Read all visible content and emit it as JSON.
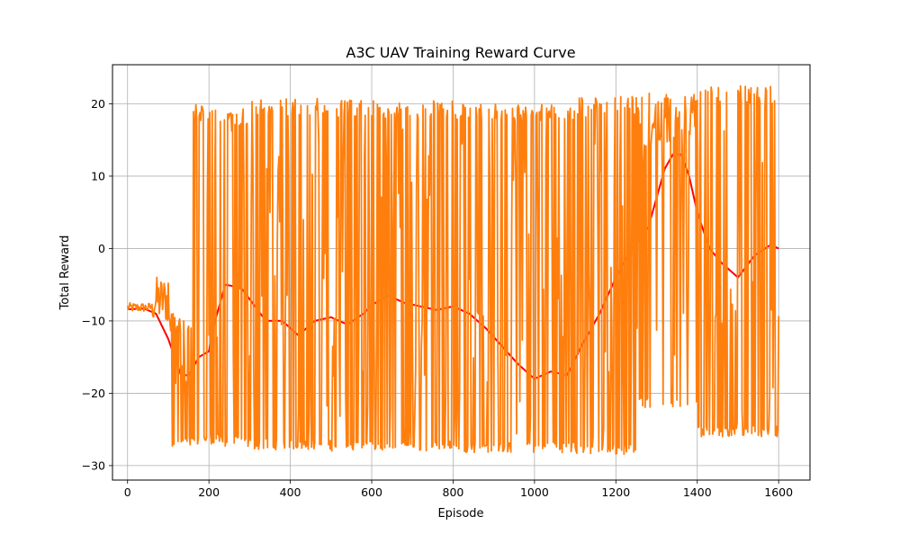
{
  "chart_data": {
    "type": "line",
    "title": "A3C UAV Training Reward Curve",
    "xlabel": "Episode",
    "ylabel": "Total Reward",
    "xlim": [
      -37,
      1677
    ],
    "ylim": [
      -32,
      25.4
    ],
    "xticks": [
      0,
      200,
      400,
      600,
      800,
      1000,
      1200,
      1400,
      1600
    ],
    "yticks": [
      -30,
      -20,
      -10,
      0,
      10,
      20
    ],
    "grid": true,
    "legend": "none",
    "series": [
      {
        "color": "#ff0000",
        "role": "smoothed",
        "points": [
          [
            0,
            -8.4
          ],
          [
            40,
            -8.3
          ],
          [
            70,
            -9
          ],
          [
            100,
            -12.5
          ],
          [
            130,
            -17.3
          ],
          [
            150,
            -17.6
          ],
          [
            175,
            -15
          ],
          [
            200,
            -14.2
          ],
          [
            215,
            -10
          ],
          [
            240,
            -5
          ],
          [
            260,
            -5.2
          ],
          [
            280,
            -5.5
          ],
          [
            300,
            -7
          ],
          [
            340,
            -10
          ],
          [
            380,
            -10
          ],
          [
            420,
            -12
          ],
          [
            460,
            -10
          ],
          [
            500,
            -9.5
          ],
          [
            540,
            -10.5
          ],
          [
            580,
            -9
          ],
          [
            600,
            -7.8
          ],
          [
            640,
            -6.5
          ],
          [
            680,
            -7.5
          ],
          [
            720,
            -8
          ],
          [
            760,
            -8.5
          ],
          [
            800,
            -8
          ],
          [
            840,
            -9
          ],
          [
            880,
            -11
          ],
          [
            920,
            -13.5
          ],
          [
            960,
            -16
          ],
          [
            1000,
            -18
          ],
          [
            1040,
            -17
          ],
          [
            1080,
            -17.5
          ],
          [
            1120,
            -13
          ],
          [
            1160,
            -9
          ],
          [
            1200,
            -4
          ],
          [
            1240,
            0
          ],
          [
            1280,
            3
          ],
          [
            1300,
            7
          ],
          [
            1320,
            11
          ],
          [
            1340,
            13
          ],
          [
            1360,
            13
          ],
          [
            1380,
            10
          ],
          [
            1400,
            5
          ],
          [
            1430,
            0
          ],
          [
            1460,
            -2
          ],
          [
            1500,
            -4
          ],
          [
            1540,
            -1
          ],
          [
            1580,
            0.5
          ],
          [
            1600,
            0
          ]
        ]
      },
      {
        "color": "#ff7f0e",
        "role": "raw",
        "segments": [
          {
            "range": [
              0,
              60
            ],
            "low": -8.8,
            "high": -7.5
          },
          {
            "range": [
              60,
              100
            ],
            "low": -10.5,
            "high": -3.8
          },
          {
            "range": [
              100,
              160
            ],
            "low": -27.5,
            "high": -9
          },
          {
            "range": [
              160,
              230
            ],
            "low": -27,
            "high": 20
          },
          {
            "range": [
              230,
              300
            ],
            "low": -27.5,
            "high": 19.5
          },
          {
            "range": [
              300,
              500
            ],
            "low": -27.8,
            "high": 20.8
          },
          {
            "range": [
              500,
              800
            ],
            "low": -28,
            "high": 20.5
          },
          {
            "range": [
              800,
              1100
            ],
            "low": -28.2,
            "high": 20
          },
          {
            "range": [
              1100,
              1250
            ],
            "low": -28.5,
            "high": 21
          },
          {
            "range": [
              1250,
              1400
            ],
            "low": -22,
            "high": 21.5
          },
          {
            "range": [
              1400,
              1600
            ],
            "low": -26,
            "high": 22.5
          }
        ]
      }
    ]
  }
}
